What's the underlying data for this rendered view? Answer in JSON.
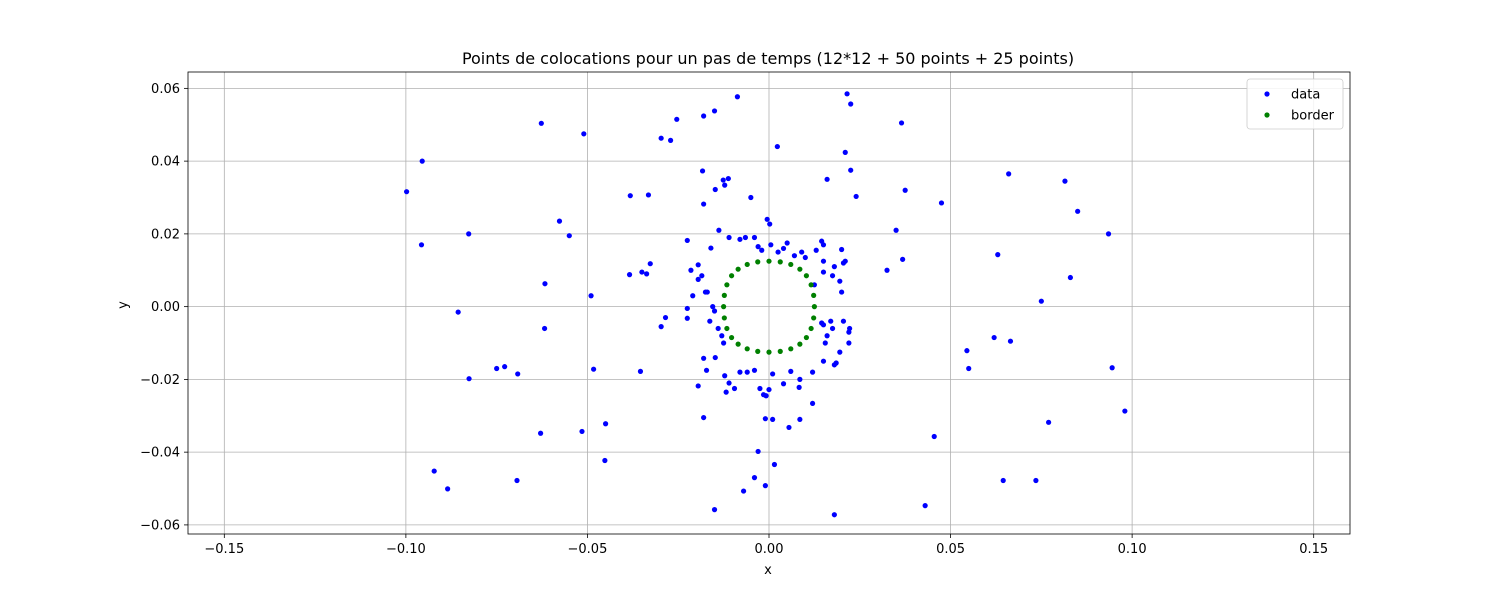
{
  "chart_data": {
    "type": "scatter",
    "title": "Points de colocations pour un pas de temps (12*12 + 50 points + 25 points)",
    "xlabel": "x",
    "ylabel": "y",
    "xlim": [
      -0.16,
      0.16
    ],
    "ylim": [
      -0.0625,
      0.0645
    ],
    "xticks": [
      -0.15,
      -0.1,
      -0.05,
      0.0,
      0.05,
      0.1,
      0.15
    ],
    "xtick_labels": [
      "−0.15",
      "−0.10",
      "−0.05",
      "0.00",
      "0.05",
      "0.10",
      "0.15"
    ],
    "yticks": [
      -0.06,
      -0.04,
      -0.02,
      0.0,
      0.02,
      0.04,
      0.06
    ],
    "ytick_labels": [
      "−0.06",
      "−0.04",
      "−0.02",
      "0.00",
      "0.02",
      "0.04",
      "0.06"
    ],
    "grid": true,
    "legend_position": "top-right",
    "series": [
      {
        "name": "data",
        "color": "#0000ff",
        "points": [
          [
            -0.0998,
            0.0316
          ],
          [
            -0.0955,
            0.04
          ],
          [
            -0.0957,
            0.017
          ],
          [
            -0.0827,
            0.02
          ],
          [
            -0.0856,
            -0.0015
          ],
          [
            -0.0826,
            -0.0198
          ],
          [
            -0.075,
            -0.017
          ],
          [
            -0.0728,
            -0.0165
          ],
          [
            -0.0692,
            -0.0185
          ],
          [
            -0.0694,
            -0.0478
          ],
          [
            -0.0922,
            -0.0452
          ],
          [
            -0.0885,
            -0.0501
          ],
          [
            -0.0627,
            0.0504
          ],
          [
            -0.0617,
            0.0063
          ],
          [
            -0.0618,
            -0.006
          ],
          [
            -0.0629,
            -0.0348
          ],
          [
            -0.0577,
            0.0235
          ],
          [
            -0.055,
            0.0195
          ],
          [
            -0.051,
            0.0475
          ],
          [
            -0.049,
            0.003
          ],
          [
            -0.0483,
            -0.0172
          ],
          [
            -0.0515,
            -0.0343
          ],
          [
            -0.045,
            -0.0322
          ],
          [
            -0.0452,
            -0.0423
          ],
          [
            -0.0382,
            0.0305
          ],
          [
            -0.0384,
            0.0088
          ],
          [
            -0.035,
            0.0095
          ],
          [
            -0.0337,
            0.009
          ],
          [
            -0.0327,
            0.0118
          ],
          [
            -0.0332,
            0.0307
          ],
          [
            -0.0354,
            -0.0178
          ],
          [
            -0.0297,
            0.0463
          ],
          [
            -0.0271,
            0.0457
          ],
          [
            -0.0254,
            0.0515
          ],
          [
            -0.0285,
            -0.003
          ],
          [
            -0.0297,
            -0.0055
          ],
          [
            -0.0225,
            0.0182
          ],
          [
            -0.0215,
            0.01
          ],
          [
            -0.0225,
            -0.0005
          ],
          [
            -0.0225,
            -0.0032
          ],
          [
            -0.021,
            0.003
          ],
          [
            -0.018,
            0.0524
          ],
          [
            -0.0183,
            0.0373
          ],
          [
            -0.018,
            0.0282
          ],
          [
            -0.015,
            0.0538
          ],
          [
            -0.0148,
            0.0322
          ],
          [
            -0.0126,
            0.0348
          ],
          [
            -0.0112,
            0.0352
          ],
          [
            -0.0122,
            0.0334
          ],
          [
            -0.0138,
            0.021
          ],
          [
            -0.0087,
            0.0577
          ],
          [
            -0.005,
            0.03
          ],
          [
            0.0023,
            0.044
          ],
          [
            -0.0005,
            0.024
          ],
          [
            0.0002,
            0.0227
          ],
          [
            -0.004,
            0.019
          ],
          [
            -0.0065,
            0.019
          ],
          [
            -0.008,
            0.0185
          ],
          [
            -0.011,
            0.019
          ],
          [
            -0.016,
            0.0161
          ],
          [
            -0.0195,
            0.0115
          ],
          [
            -0.0185,
            0.0085
          ],
          [
            -0.0195,
            0.0075
          ],
          [
            -0.0175,
            0.004
          ],
          [
            -0.017,
            0.004
          ],
          [
            -0.0155,
            0.0
          ],
          [
            -0.015,
            -0.0012
          ],
          [
            -0.0163,
            -0.004
          ],
          [
            -0.014,
            -0.006
          ],
          [
            -0.013,
            -0.008
          ],
          [
            -0.0125,
            -0.01
          ],
          [
            -0.0148,
            -0.014
          ],
          [
            -0.018,
            -0.0142
          ],
          [
            -0.0172,
            -0.0175
          ],
          [
            -0.0195,
            -0.0218
          ],
          [
            -0.0122,
            -0.019
          ],
          [
            -0.011,
            -0.021
          ],
          [
            -0.0118,
            -0.0235
          ],
          [
            -0.0095,
            -0.0225
          ],
          [
            -0.018,
            -0.0305
          ],
          [
            -0.015,
            -0.0558
          ],
          [
            -0.008,
            -0.018
          ],
          [
            -0.006,
            -0.018
          ],
          [
            -0.004,
            -0.0175
          ],
          [
            -0.0025,
            -0.0225
          ],
          [
            0.0,
            -0.0228
          ],
          [
            -0.0015,
            -0.0242
          ],
          [
            -0.0008,
            -0.0245
          ],
          [
            0.001,
            -0.0185
          ],
          [
            0.004,
            -0.0212
          ],
          [
            0.006,
            -0.0178
          ],
          [
            0.0085,
            -0.02
          ],
          [
            0.0083,
            -0.0222
          ],
          [
            0.001,
            -0.031
          ],
          [
            -0.001,
            -0.0308
          ],
          [
            0.0055,
            -0.0332
          ],
          [
            0.0085,
            -0.031
          ],
          [
            0.012,
            -0.0266
          ],
          [
            -0.003,
            -0.0398
          ],
          [
            -0.004,
            -0.047
          ],
          [
            -0.001,
            -0.0492
          ],
          [
            0.0015,
            -0.0434
          ],
          [
            -0.007,
            -0.0507
          ],
          [
            0.018,
            -0.0572
          ],
          [
            0.012,
            -0.018
          ],
          [
            0.015,
            -0.015
          ],
          [
            0.018,
            -0.016
          ],
          [
            0.0185,
            -0.0155
          ],
          [
            0.0155,
            -0.01
          ],
          [
            0.017,
            -0.004
          ],
          [
            0.0205,
            -0.004
          ],
          [
            0.022,
            -0.007
          ],
          [
            0.0222,
            -0.006
          ],
          [
            0.0195,
            -0.0125
          ],
          [
            0.022,
            -0.01
          ],
          [
            0.015,
            -0.005
          ],
          [
            0.0175,
            -0.006
          ],
          [
            0.016,
            -0.008
          ],
          [
            0.0145,
            -0.0045
          ],
          [
            0.0125,
            0.006
          ],
          [
            0.015,
            0.0095
          ],
          [
            0.015,
            0.0125
          ],
          [
            0.0175,
            0.0085
          ],
          [
            0.0195,
            0.007
          ],
          [
            0.02,
            0.004
          ],
          [
            0.018,
            0.011
          ],
          [
            0.0205,
            0.012
          ],
          [
            0.021,
            0.0125
          ],
          [
            0.02,
            0.0157
          ],
          [
            0.0145,
            0.018
          ],
          [
            0.015,
            0.017
          ],
          [
            0.013,
            0.0155
          ],
          [
            0.009,
            0.015
          ],
          [
            0.01,
            0.0135
          ],
          [
            0.007,
            0.014
          ],
          [
            0.005,
            0.0175
          ],
          [
            0.004,
            0.016
          ],
          [
            -0.002,
            0.0155
          ],
          [
            -0.003,
            0.0165
          ],
          [
            0.0005,
            0.017
          ],
          [
            0.0025,
            0.015
          ],
          [
            0.0215,
            0.0585
          ],
          [
            0.0225,
            0.0557
          ],
          [
            0.021,
            0.0424
          ],
          [
            0.0225,
            0.0375
          ],
          [
            0.016,
            0.035
          ],
          [
            0.024,
            0.0303
          ],
          [
            0.0325,
            0.01
          ],
          [
            0.035,
            0.021
          ],
          [
            0.0368,
            0.013
          ],
          [
            0.0365,
            0.0505
          ],
          [
            0.0375,
            0.032
          ],
          [
            0.0475,
            0.0285
          ],
          [
            0.0455,
            -0.0357
          ],
          [
            0.043,
            -0.0547
          ],
          [
            0.0545,
            -0.0121
          ],
          [
            0.055,
            -0.017
          ],
          [
            0.062,
            -0.0085
          ],
          [
            0.063,
            0.0143
          ],
          [
            0.066,
            0.0365
          ],
          [
            0.0665,
            -0.0095
          ],
          [
            0.0645,
            -0.0478
          ],
          [
            0.0735,
            -0.0478
          ],
          [
            0.075,
            0.0015
          ],
          [
            0.077,
            -0.0318
          ],
          [
            0.0815,
            0.0345
          ],
          [
            0.083,
            0.008
          ],
          [
            0.085,
            0.0262
          ],
          [
            0.0935,
            0.02
          ],
          [
            0.0945,
            -0.0168
          ],
          [
            0.098,
            -0.0287
          ]
        ]
      },
      {
        "name": "border",
        "color": "#008000",
        "points": [
          [
            0.0125,
            0.0
          ],
          [
            0.0123,
            0.0031
          ],
          [
            0.0116,
            0.006
          ],
          [
            0.0103,
            0.0085
          ],
          [
            0.0085,
            0.0103
          ],
          [
            0.006,
            0.0116
          ],
          [
            0.0031,
            0.0123
          ],
          [
            0.0,
            0.0125
          ],
          [
            -0.0031,
            0.0123
          ],
          [
            -0.006,
            0.0116
          ],
          [
            -0.0085,
            0.0103
          ],
          [
            -0.0103,
            0.0085
          ],
          [
            -0.0116,
            0.006
          ],
          [
            -0.0123,
            0.0031
          ],
          [
            -0.0125,
            0.0
          ],
          [
            -0.0123,
            -0.0031
          ],
          [
            -0.0116,
            -0.006
          ],
          [
            -0.0103,
            -0.0085
          ],
          [
            -0.0085,
            -0.0103
          ],
          [
            -0.006,
            -0.0116
          ],
          [
            -0.0031,
            -0.0123
          ],
          [
            0.0,
            -0.0125
          ],
          [
            0.0031,
            -0.0123
          ],
          [
            0.006,
            -0.0116
          ],
          [
            0.0085,
            -0.0103
          ],
          [
            0.0103,
            -0.0085
          ],
          [
            0.0116,
            -0.006
          ],
          [
            0.0123,
            -0.0031
          ]
        ]
      }
    ]
  }
}
